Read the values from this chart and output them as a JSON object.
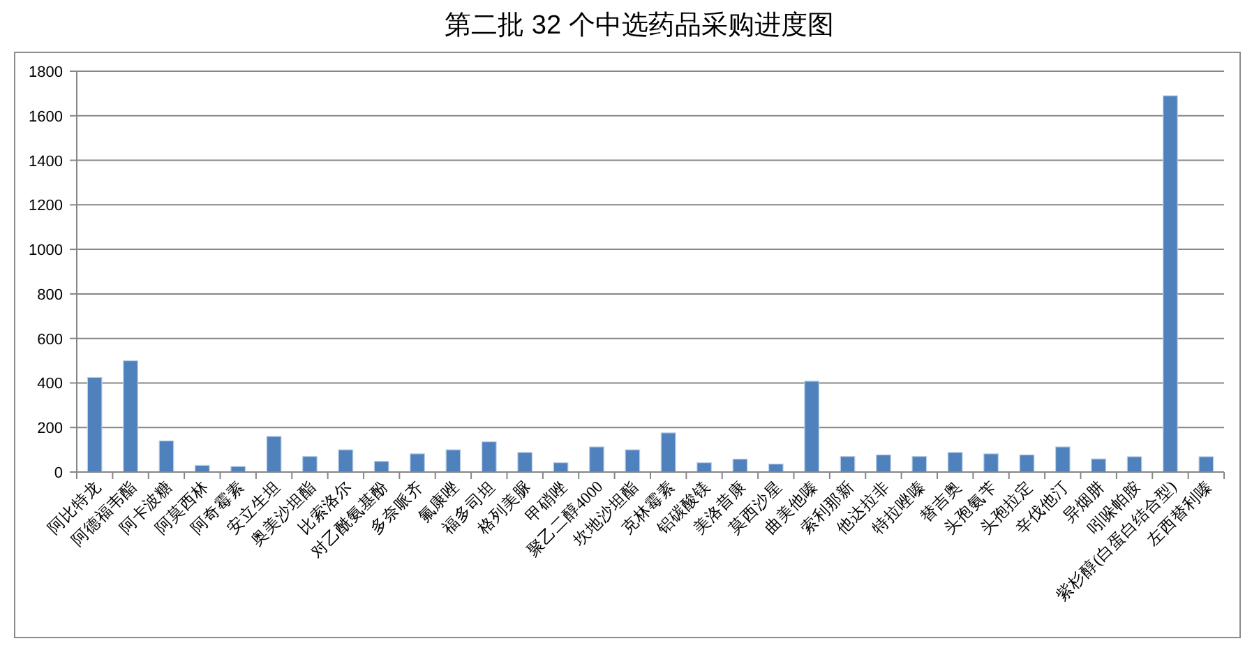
{
  "chart_data": {
    "type": "bar",
    "title": "第二批 32 个中选药品采购进度图",
    "categories": [
      "阿比特龙",
      "阿德福韦酯",
      "阿卡波糖",
      "阿莫西林",
      "阿奇霉素",
      "安立生坦",
      "奥美沙坦酯",
      "比索洛尔",
      "对乙酰氨基酚",
      "多奈哌齐",
      "氟康唑",
      "福多司坦",
      "格列美脲",
      "甲硝唑",
      "聚乙二醇4000",
      "坎地沙坦酯",
      "克林霉素",
      "铝碳酸镁",
      "美洛昔康",
      "莫西沙星",
      "曲美他嗪",
      "索利那新",
      "他达拉非",
      "特拉唑嗪",
      "替吉奥",
      "头孢氨苄",
      "头孢拉定",
      "辛伐他汀",
      "异烟肼",
      "吲哚帕胺",
      "紫杉醇(白蛋白结合型)",
      "左西替利嗪"
    ],
    "values": [
      425,
      500,
      140,
      30,
      25,
      160,
      70,
      100,
      48,
      82,
      100,
      136,
      88,
      42,
      113,
      100,
      176,
      42,
      58,
      36,
      408,
      70,
      77,
      70,
      88,
      82,
      77,
      113,
      59,
      69,
      1690,
      69
    ],
    "color": "#4f81bd",
    "ylim": [
      0,
      1800
    ],
    "yticks": [
      0,
      200,
      400,
      600,
      800,
      1000,
      1200,
      1400,
      1600,
      1800
    ],
    "grid": "y"
  }
}
